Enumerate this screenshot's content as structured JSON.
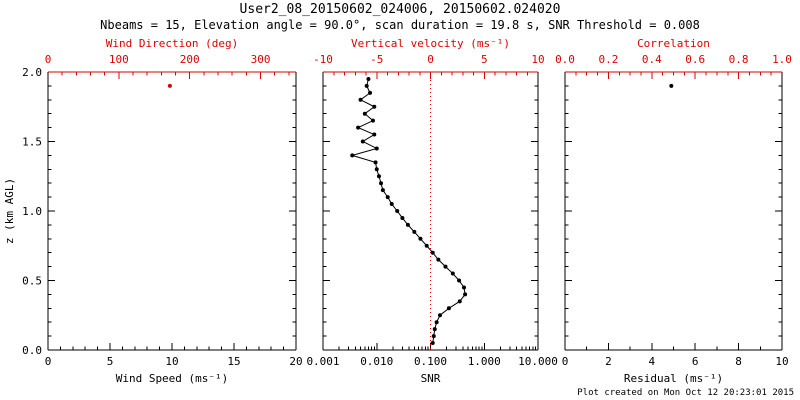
{
  "title": "User2_08_20150602_024006, 20150602.024020",
  "subtitle": "Nbeams = 15, Elevation angle = 90.0°, scan duration = 19.8 s, SNR Threshold = 0.008",
  "credit": "Plot created on Mon Oct 12 20:23:01 2015",
  "colors": {
    "axis": "#000000",
    "top_axis": "#dd0000",
    "data": "#000000",
    "reference_line": "#dd0000"
  },
  "chart_data": {
    "type": "scatter",
    "y_axis": {
      "label": "z (km AGL)",
      "min": 0,
      "max": 2,
      "ticks": [
        0,
        0.5,
        1,
        1.5,
        2
      ],
      "tick_labels": [
        "0.0",
        "0.5",
        "1.0",
        "1.5",
        "2.0"
      ],
      "minor_step": 0.1
    },
    "panels": [
      {
        "id": "wind",
        "bottom_axis": {
          "label": "Wind Speed (ms⁻¹)",
          "min": 0,
          "max": 20,
          "scale": "linear",
          "ticks": [
            0,
            5,
            10,
            15,
            20
          ],
          "tick_labels": [
            "0",
            "5",
            "10",
            "15",
            "20"
          ],
          "minor_step": 1
        },
        "top_axis": {
          "label": "Wind Direction (deg)",
          "min": 0,
          "max": 350,
          "scale": "linear",
          "ticks": [
            0,
            100,
            200,
            300
          ],
          "tick_labels": [
            "0",
            "100",
            "200",
            "300"
          ],
          "minor_step": 20
        },
        "show_y_labels": true,
        "series": [
          {
            "name": "wind-direction-point",
            "axis": "top",
            "color": "#dd0000",
            "line": false,
            "points": [
              [
                172,
                1.9
              ]
            ]
          }
        ]
      },
      {
        "id": "snr",
        "bottom_axis": {
          "label": "SNR",
          "min": 0.001,
          "max": 10,
          "scale": "log",
          "ticks": [
            0.001,
            0.01,
            0.1,
            1,
            10
          ],
          "tick_labels": [
            "0.001",
            "0.010",
            "0.100",
            "1.000",
            "10.000"
          ]
        },
        "top_axis": {
          "label": "Vertical velocity (ms⁻¹)",
          "min": -10,
          "max": 10,
          "scale": "linear",
          "ticks": [
            -10,
            -5,
            0,
            5,
            10
          ],
          "tick_labels": [
            "-10",
            "-5",
            "0",
            "5",
            "10"
          ],
          "minor_step": 1
        },
        "show_y_labels": false,
        "reference_line": {
          "axis": "top",
          "value": 0,
          "color": "#dd0000",
          "style": "dotted",
          "name": "zero-vertical-velocity-line"
        },
        "series": [
          {
            "name": "snr-profile",
            "axis": "bottom",
            "color": "#000000",
            "line": true,
            "points": [
              [
                0.11,
                0.05
              ],
              [
                0.115,
                0.1
              ],
              [
                0.12,
                0.15
              ],
              [
                0.13,
                0.2
              ],
              [
                0.15,
                0.25
              ],
              [
                0.22,
                0.3
              ],
              [
                0.35,
                0.35
              ],
              [
                0.44,
                0.4
              ],
              [
                0.42,
                0.45
              ],
              [
                0.34,
                0.5
              ],
              [
                0.26,
                0.55
              ],
              [
                0.19,
                0.6
              ],
              [
                0.14,
                0.65
              ],
              [
                0.11,
                0.7
              ],
              [
                0.085,
                0.75
              ],
              [
                0.065,
                0.8
              ],
              [
                0.05,
                0.85
              ],
              [
                0.038,
                0.9
              ],
              [
                0.03,
                0.95
              ],
              [
                0.024,
                1.0
              ],
              [
                0.019,
                1.05
              ],
              [
                0.016,
                1.1
              ],
              [
                0.013,
                1.15
              ],
              [
                0.012,
                1.2
              ],
              [
                0.011,
                1.25
              ],
              [
                0.01,
                1.3
              ],
              [
                0.0095,
                1.35
              ],
              [
                0.0035,
                1.4
              ],
              [
                0.01,
                1.45
              ],
              [
                0.0055,
                1.5
              ],
              [
                0.009,
                1.55
              ],
              [
                0.0045,
                1.6
              ],
              [
                0.0085,
                1.65
              ],
              [
                0.006,
                1.7
              ],
              [
                0.009,
                1.75
              ],
              [
                0.005,
                1.8
              ],
              [
                0.0075,
                1.85
              ],
              [
                0.0065,
                1.9
              ],
              [
                0.007,
                1.95
              ]
            ]
          }
        ]
      },
      {
        "id": "residual",
        "bottom_axis": {
          "label": "Residual (ms⁻¹)",
          "min": 0,
          "max": 10,
          "scale": "linear",
          "ticks": [
            0,
            2,
            4,
            6,
            8,
            10
          ],
          "tick_labels": [
            "0",
            "2",
            "4",
            "6",
            "8",
            "10"
          ],
          "minor_step": 1
        },
        "top_axis": {
          "label": "Correlation",
          "min": 0,
          "max": 1,
          "scale": "linear",
          "ticks": [
            0,
            0.2,
            0.4,
            0.6,
            0.8,
            1
          ],
          "tick_labels": [
            "0.0",
            "0.2",
            "0.4",
            "0.6",
            "0.8",
            "1.0"
          ],
          "minor_step": 0.05
        },
        "show_y_labels": false,
        "series": [
          {
            "name": "residual-point",
            "axis": "bottom",
            "color": "#000000",
            "line": false,
            "points": [
              [
                4.9,
                1.9
              ]
            ]
          }
        ]
      }
    ]
  }
}
